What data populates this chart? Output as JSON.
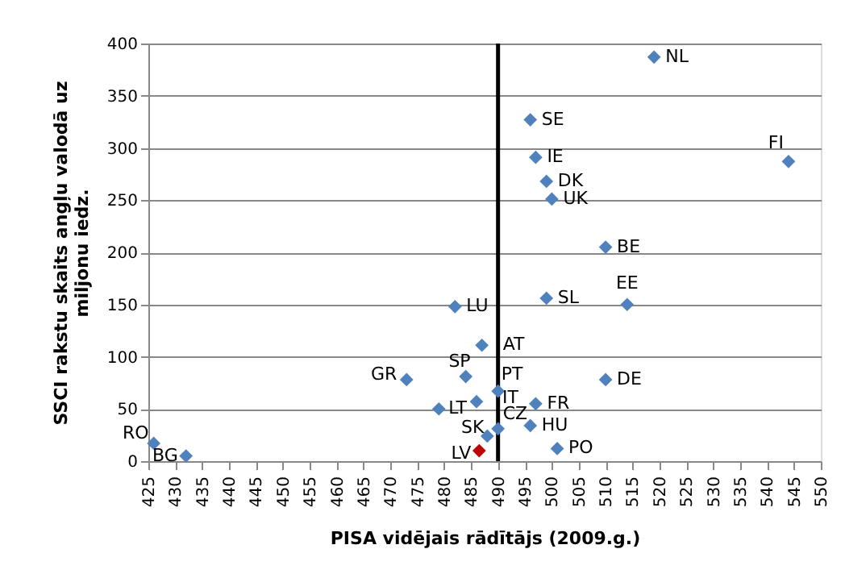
{
  "chart_data": {
    "type": "scatter",
    "xlabel": "PISA vidējais rādītājs (2009.g.)",
    "ylabel": "SSCI rakstu skaits angļu valodā uz miljonu iedz.",
    "x": [
      426,
      432,
      473,
      484,
      482,
      487,
      479,
      486,
      488,
      486.5,
      490,
      490,
      496,
      497,
      501,
      510,
      499,
      514,
      510,
      500,
      499,
      497,
      496,
      519,
      544
    ],
    "values": [
      17,
      5,
      78,
      81,
      148,
      111,
      50,
      57,
      24,
      10,
      67,
      31,
      34,
      55,
      12,
      78,
      156,
      150,
      205,
      251,
      268,
      291,
      327,
      387,
      287
    ],
    "colors": [
      "#4f81bd",
      "#4f81bd",
      "#4f81bd",
      "#4f81bd",
      "#4f81bd",
      "#4f81bd",
      "#4f81bd",
      "#4f81bd",
      "#4f81bd",
      "#c00000",
      "#4f81bd",
      "#4f81bd",
      "#4f81bd",
      "#4f81bd",
      "#4f81bd",
      "#4f81bd",
      "#4f81bd",
      "#4f81bd",
      "#4f81bd",
      "#4f81bd",
      "#4f81bd",
      "#4f81bd",
      "#4f81bd",
      "#4f81bd",
      "#4f81bd"
    ],
    "annotations": [
      {
        "text": "RO",
        "x": 426,
        "y": 17
      },
      {
        "text": "BG",
        "x": 432,
        "y": 5
      },
      {
        "text": "GR",
        "x": 473,
        "y": 78
      },
      {
        "text": "SP",
        "x": 484,
        "y": 81
      },
      {
        "text": "LU",
        "x": 482,
        "y": 148
      },
      {
        "text": "AT",
        "x": 487,
        "y": 111
      },
      {
        "text": "LT",
        "x": 479,
        "y": 50
      },
      {
        "text": "IT",
        "x": 486,
        "y": 57
      },
      {
        "text": "SK",
        "x": 488,
        "y": 24
      },
      {
        "text": "LV",
        "x": 486.5,
        "y": 10
      },
      {
        "text": "PT",
        "x": 490,
        "y": 67
      },
      {
        "text": "CZ",
        "x": 490,
        "y": 31
      },
      {
        "text": "HU",
        "x": 496,
        "y": 34
      },
      {
        "text": "FR",
        "x": 497,
        "y": 55
      },
      {
        "text": "PO",
        "x": 501,
        "y": 12
      },
      {
        "text": "DE",
        "x": 510,
        "y": 78
      },
      {
        "text": "SL",
        "x": 499,
        "y": 156
      },
      {
        "text": "EE",
        "x": 514,
        "y": 150
      },
      {
        "text": "BE",
        "x": 510,
        "y": 205
      },
      {
        "text": "UK",
        "x": 500,
        "y": 251
      },
      {
        "text": "DK",
        "x": 499,
        "y": 268
      },
      {
        "text": "IE",
        "x": 497,
        "y": 291
      },
      {
        "text": "SE",
        "x": 496,
        "y": 327
      },
      {
        "text": "NL",
        "x": 519,
        "y": 387
      },
      {
        "text": "FI",
        "x": 544,
        "y": 287
      }
    ],
    "xlim": [
      425,
      550
    ],
    "xticks": [
      425,
      430,
      435,
      440,
      445,
      450,
      455,
      460,
      465,
      470,
      475,
      480,
      485,
      490,
      495,
      500,
      505,
      510,
      515,
      520,
      525,
      530,
      535,
      540,
      545,
      550
    ],
    "ylim": [
      0,
      400
    ],
    "yticks": [
      0,
      50,
      100,
      150,
      200,
      250,
      300,
      350,
      400
    ],
    "ref_lines": [
      {
        "axis": "x",
        "value": 490,
        "color": "#000000"
      }
    ],
    "grid": "y",
    "marker": "diamond",
    "legend": false
  }
}
